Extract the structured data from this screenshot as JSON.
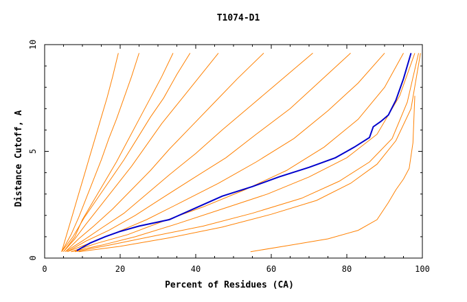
{
  "chart_data": {
    "type": "line",
    "title": "T1074-D1",
    "xlabel": "Percent of Residues (CA)",
    "ylabel": "Distance Cutoff, A",
    "xlim": [
      0,
      100
    ],
    "ylim": [
      0,
      10
    ],
    "xticks": [
      "0",
      "20",
      "40",
      "60",
      "80",
      "100"
    ],
    "yticks": [
      "0",
      "5",
      "10"
    ],
    "grid": false,
    "colors": {
      "models": "#ff8000",
      "highlight": "#0000cc"
    },
    "highlight_series": {
      "x": [
        8.5,
        12,
        16,
        20,
        25,
        33,
        40,
        47,
        55,
        62,
        70,
        77,
        82,
        86,
        87,
        89,
        91,
        93,
        95,
        97
      ],
      "y": [
        0.35,
        0.7,
        1.0,
        1.25,
        1.5,
        1.8,
        2.35,
        2.9,
        3.35,
        3.8,
        4.25,
        4.7,
        5.2,
        5.65,
        6.15,
        6.4,
        6.7,
        7.4,
        8.4,
        9.6
      ]
    },
    "series": [
      {
        "x": [
          4.5,
          6,
          7.5,
          9,
          10.5,
          12,
          13.5,
          15,
          16.5,
          18,
          19.5
        ],
        "y": [
          0.3,
          1.2,
          2.1,
          3.0,
          3.9,
          4.8,
          5.7,
          6.6,
          7.5,
          8.5,
          9.6
        ]
      },
      {
        "x": [
          4.5,
          7,
          9,
          11,
          13,
          15,
          17,
          19,
          21,
          23,
          25
        ],
        "y": [
          0.3,
          1.1,
          1.9,
          2.8,
          3.7,
          4.6,
          5.6,
          6.5,
          7.5,
          8.5,
          9.6
        ]
      },
      {
        "x": [
          5,
          8,
          10,
          13,
          16,
          19,
          22,
          25,
          28,
          31,
          34
        ],
        "y": [
          0.3,
          1.0,
          1.8,
          2.7,
          3.6,
          4.5,
          5.5,
          6.5,
          7.5,
          8.5,
          9.6
        ]
      },
      {
        "x": [
          5,
          8,
          11,
          15,
          19,
          23,
          27,
          31,
          36,
          41,
          46
        ],
        "y": [
          0.3,
          0.9,
          1.6,
          2.5,
          3.4,
          4.3,
          5.3,
          6.3,
          7.4,
          8.5,
          9.6
        ]
      },
      {
        "x": [
          5.5,
          9,
          13,
          18,
          23,
          28,
          33,
          39,
          45,
          51,
          58
        ],
        "y": [
          0.3,
          0.9,
          1.5,
          2.3,
          3.2,
          4.1,
          5.1,
          6.2,
          7.3,
          8.4,
          9.6
        ]
      },
      {
        "x": [
          5.5,
          10,
          15,
          21,
          27,
          33,
          40,
          47,
          55,
          63,
          71
        ],
        "y": [
          0.3,
          0.8,
          1.4,
          2.1,
          3.0,
          3.9,
          4.9,
          6.0,
          7.2,
          8.4,
          9.6
        ]
      },
      {
        "x": [
          6,
          11,
          17,
          24,
          31,
          39,
          48,
          56,
          65,
          73,
          81
        ],
        "y": [
          0.3,
          0.8,
          1.3,
          2.0,
          2.8,
          3.7,
          4.7,
          5.8,
          7.0,
          8.3,
          9.6
        ]
      },
      {
        "x": [
          6,
          12,
          19,
          27,
          36,
          46,
          56,
          66,
          75,
          83,
          90
        ],
        "y": [
          0.3,
          0.7,
          1.2,
          1.8,
          2.6,
          3.5,
          4.5,
          5.6,
          6.9,
          8.2,
          9.6
        ]
      },
      {
        "x": [
          7,
          14,
          22,
          31,
          42,
          53,
          64,
          74,
          83,
          90,
          95
        ],
        "y": [
          0.3,
          0.7,
          1.1,
          1.7,
          2.4,
          3.2,
          4.1,
          5.2,
          6.5,
          8.0,
          9.6
        ]
      },
      {
        "x": [
          7,
          15,
          24,
          35,
          47,
          59,
          70,
          80,
          88,
          94,
          98
        ],
        "y": [
          0.3,
          0.6,
          1.0,
          1.6,
          2.3,
          3.0,
          3.8,
          4.7,
          5.8,
          7.6,
          9.6
        ]
      },
      {
        "x": [
          8,
          17,
          28,
          42,
          55,
          68,
          78,
          86,
          92,
          96,
          99
        ],
        "y": [
          0.3,
          0.6,
          1.0,
          1.5,
          2.1,
          2.8,
          3.6,
          4.5,
          5.6,
          7.3,
          9.6
        ]
      },
      {
        "x": [
          54.5,
          65,
          75,
          83,
          88,
          91,
          93,
          95,
          96.5,
          97.5,
          98
        ],
        "y": [
          0.3,
          0.6,
          0.9,
          1.3,
          1.8,
          2.6,
          3.2,
          3.7,
          4.2,
          5.4,
          7.6
        ]
      },
      {
        "x": [
          9,
          20,
          33,
          47,
          60,
          72,
          81,
          88,
          93,
          97,
          99.5
        ],
        "y": [
          0.3,
          0.55,
          0.95,
          1.45,
          2.05,
          2.7,
          3.5,
          4.4,
          5.5,
          7.0,
          9.6
        ]
      },
      {
        "x": [
          4.5,
          7.5,
          10.5,
          14,
          17.5,
          21,
          24.5,
          28,
          31.5,
          35,
          38.5
        ],
        "y": [
          0.3,
          1.0,
          1.9,
          2.8,
          3.7,
          4.6,
          5.6,
          6.6,
          7.5,
          8.6,
          9.6
        ]
      }
    ]
  }
}
